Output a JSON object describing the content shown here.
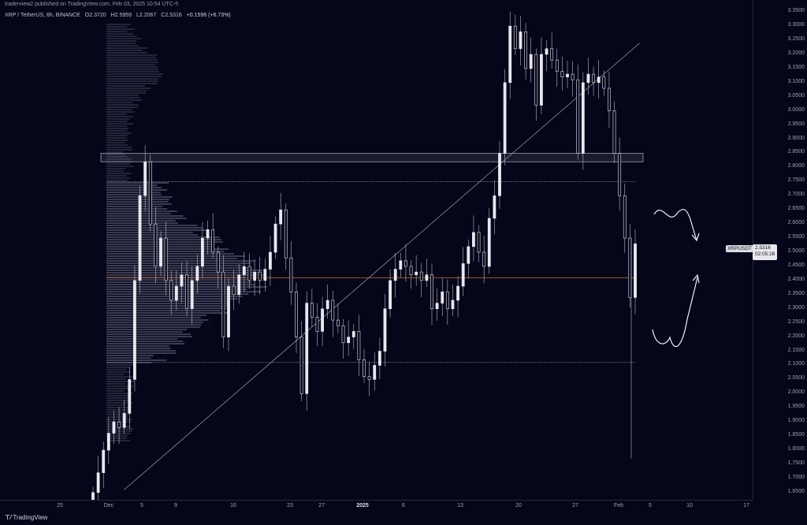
{
  "header": {
    "published": "traderview2 published on TradingView.com, Feb 03, 2025 10:54 UTC-5"
  },
  "legend": {
    "symbol": "XRP / TetherUS, 6h, BINANCE",
    "open": "O2.3720",
    "high": "H2.5959",
    "low": "L2.2067",
    "close": "C2.5316",
    "change": "+0.1596 (+6.73%)"
  },
  "price_label": {
    "symbol": "XRPUSDT",
    "price": "2.5316",
    "countdown": "02:05:28"
  },
  "footer": {
    "brand": "TradingView"
  },
  "colors": {
    "background": "#06061a",
    "candle": "#e8e8ee",
    "poc": "#c8772a",
    "zone": "#9a9aaa"
  },
  "chart_data": {
    "type": "candlestick",
    "ylim": [
      1.63,
      3.37
    ],
    "yticks": [
      "3.3500",
      "3.3000",
      "3.2500",
      "3.2000",
      "3.1500",
      "3.1000",
      "3.0500",
      "3.0000",
      "2.9500",
      "2.9000",
      "2.8500",
      "2.8000",
      "2.7500",
      "2.7000",
      "2.6500",
      "2.6000",
      "2.5500",
      "2.5000",
      "2.4500",
      "2.4000",
      "2.3500",
      "2.3000",
      "2.2500",
      "2.2000",
      "2.1500",
      "2.1000",
      "2.0500",
      "2.0000",
      "1.9500",
      "1.9000",
      "1.8500",
      "1.8000",
      "1.7500",
      "1.7000",
      "1.6500"
    ],
    "xticks": [
      {
        "label": "25",
        "bold": false
      },
      {
        "label": "Dec",
        "bold": false
      },
      {
        "label": "5",
        "bold": false
      },
      {
        "label": "9",
        "bold": false
      },
      {
        "label": "16",
        "bold": false
      },
      {
        "label": "23",
        "bold": false
      },
      {
        "label": "27",
        "bold": false
      },
      {
        "label": "2025",
        "bold": true
      },
      {
        "label": "6",
        "bold": false
      },
      {
        "label": "13",
        "bold": false
      },
      {
        "label": "20",
        "bold": false
      },
      {
        "label": "27",
        "bold": false
      },
      {
        "label": "Feb",
        "bold": false
      },
      {
        "label": "5",
        "bold": false
      },
      {
        "label": "10",
        "bold": false
      },
      {
        "label": "17",
        "bold": false
      }
    ],
    "closes": [
      1.65,
      1.72,
      1.8,
      1.86,
      1.9,
      1.88,
      1.93,
      2.05,
      2.4,
      2.7,
      2.82,
      2.6,
      2.45,
      2.55,
      2.4,
      2.33,
      2.38,
      2.42,
      2.3,
      2.4,
      2.45,
      2.55,
      2.58,
      2.5,
      2.43,
      2.2,
      2.38,
      2.35,
      2.42,
      2.45,
      2.4,
      2.43,
      2.4,
      2.44,
      2.5,
      2.6,
      2.65,
      2.48,
      2.36,
      2.2,
      2.0,
      2.32,
      2.27,
      2.22,
      2.3,
      2.33,
      2.26,
      2.24,
      2.18,
      2.2,
      2.22,
      2.12,
      2.06,
      2.05,
      2.1,
      2.15,
      2.3,
      2.4,
      2.44,
      2.47,
      2.45,
      2.42,
      2.43,
      2.4,
      2.42,
      2.3,
      2.32,
      2.36,
      2.3,
      2.33,
      2.38,
      2.46,
      2.52,
      2.57,
      2.5,
      2.45,
      2.62,
      2.7,
      2.85,
      3.1,
      3.3,
      3.22,
      3.28,
      3.15,
      3.2,
      3.02,
      3.2,
      3.22,
      3.18,
      3.14,
      3.12,
      3.13,
      3.11,
      2.85,
      3.1,
      3.13,
      3.1,
      3.12,
      3.08,
      3.0,
      2.85,
      2.7,
      2.55,
      2.34,
      2.53
    ],
    "support_zone": [
      2.82,
      2.85
    ],
    "poc": 2.41,
    "vah": 2.75,
    "val": 2.11,
    "trendline": [
      [
        0.165,
        1.66
      ],
      [
        0.85,
        3.24
      ]
    ]
  }
}
